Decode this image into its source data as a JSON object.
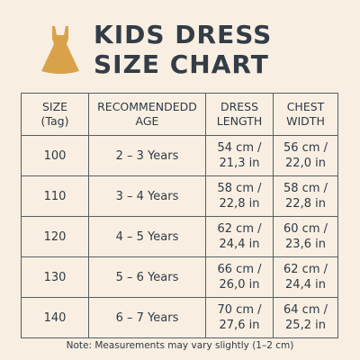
{
  "header": {
    "title_line1": "KIDS DRESS",
    "title_line2": "SIZE CHART",
    "icon": "dress-icon",
    "icon_color": "#d9a24a"
  },
  "table": {
    "headers": [
      {
        "line1": "SIZE",
        "line2": "(Tag)"
      },
      {
        "line1": "RECOMMENDEDD",
        "line2": "AGE"
      },
      {
        "line1": "DRESS",
        "line2": "LENGTH"
      },
      {
        "line1": "CHEST",
        "line2": "WIDTH"
      }
    ],
    "rows": [
      {
        "size": "100",
        "age": "2 – 3 Years",
        "length_cm": "54 cm /",
        "length_in": "21,3 in",
        "chest_cm": "56 cm /",
        "chest_in": "22,0 in"
      },
      {
        "size": "110",
        "age": "3 – 4 Years",
        "length_cm": "58 cm /",
        "length_in": "22,8 in",
        "chest_cm": "58 cm /",
        "chest_in": "22,8 in"
      },
      {
        "size": "120",
        "age": "4 – 5 Years",
        "length_cm": "62 cm /",
        "length_in": "24,4 in",
        "chest_cm": "60 cm /",
        "chest_in": "23,6 in"
      },
      {
        "size": "130",
        "age": "5 – 6 Years",
        "length_cm": "66 cm /",
        "length_in": "26,0 in",
        "chest_cm": "62 cm /",
        "chest_in": "24,4 in"
      },
      {
        "size": "140",
        "age": "6 – 7 Years",
        "length_cm": "70 cm /",
        "length_in": "27,6 in",
        "chest_cm": "64 cm /",
        "chest_in": "25,2 in"
      }
    ]
  },
  "note": "Note: Measurements may vary slightly (1–2 cm)"
}
